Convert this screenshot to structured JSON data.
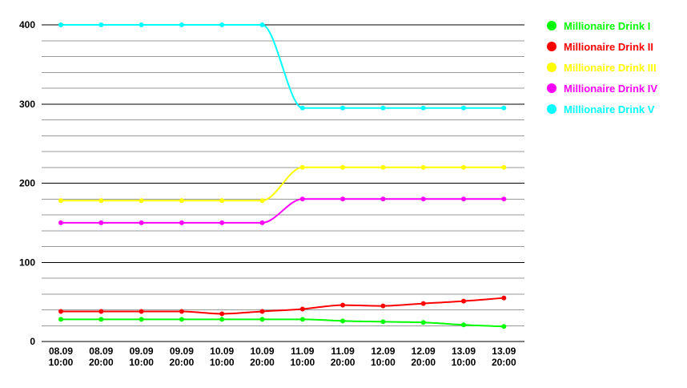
{
  "chart_data": {
    "type": "line",
    "title": "",
    "xlabel": "",
    "ylabel": "",
    "ylim": [
      0,
      400
    ],
    "y_ticks": [
      0,
      100,
      200,
      300,
      400
    ],
    "grid": true,
    "legend_position": "right",
    "categories": [
      [
        "08.09",
        "10:00"
      ],
      [
        "08.09",
        "20:00"
      ],
      [
        "09.09",
        "10:00"
      ],
      [
        "09.09",
        "20:00"
      ],
      [
        "10.09",
        "10:00"
      ],
      [
        "10.09",
        "20:00"
      ],
      [
        "11.09",
        "10:00"
      ],
      [
        "11.09",
        "20:00"
      ],
      [
        "12.09",
        "10:00"
      ],
      [
        "12.09",
        "20:00"
      ],
      [
        "13.09",
        "10:00"
      ],
      [
        "13.09",
        "20:00"
      ]
    ],
    "series": [
      {
        "name": "Millionaire Drink I",
        "color": "#00ff00",
        "values": [
          28,
          28,
          28,
          28,
          28,
          28,
          28,
          26,
          25,
          24,
          21,
          19
        ]
      },
      {
        "name": "Millionaire Drink II",
        "color": "#ff0000",
        "values": [
          38,
          38,
          38,
          38,
          35,
          38,
          41,
          46,
          45,
          48,
          51,
          55
        ]
      },
      {
        "name": "Millionaire Drink III",
        "color": "#ffff00",
        "values": [
          178,
          178,
          178,
          178,
          178,
          178,
          220,
          220,
          220,
          220,
          220,
          220
        ]
      },
      {
        "name": "Millionaire Drink IV",
        "color": "#ff00ff",
        "values": [
          150,
          150,
          150,
          150,
          150,
          150,
          180,
          180,
          180,
          180,
          180,
          180
        ]
      },
      {
        "name": "Millionaire Drink V",
        "color": "#00ffff",
        "values": [
          400,
          400,
          400,
          400,
          400,
          400,
          295,
          295,
          295,
          295,
          295,
          295
        ]
      }
    ]
  }
}
